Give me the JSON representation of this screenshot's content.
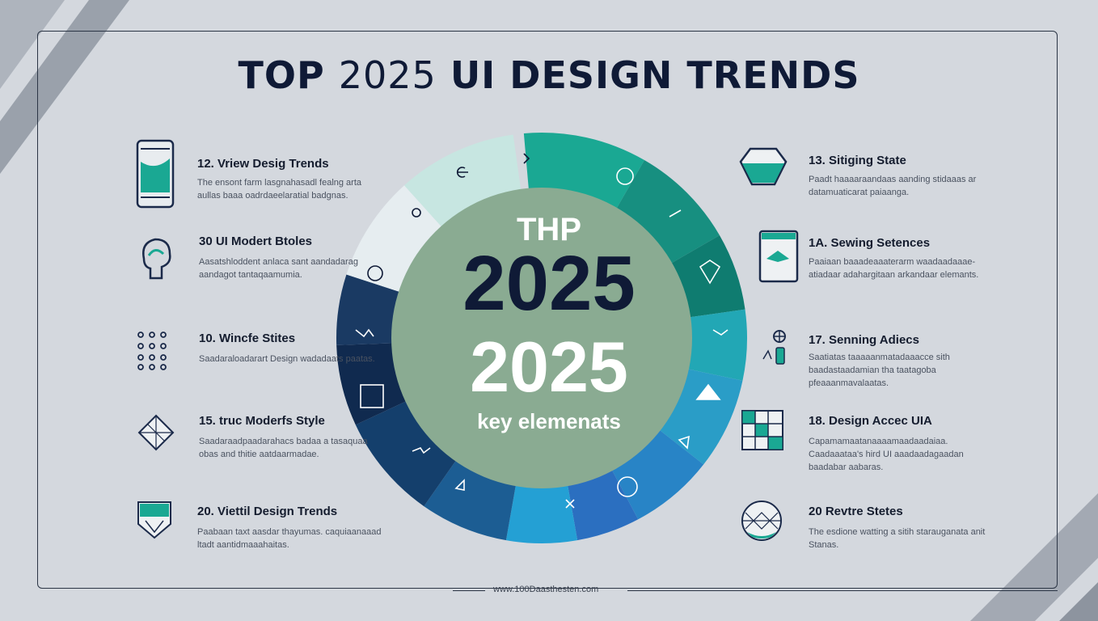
{
  "title": {
    "prefix": "TOP",
    "year": "2025",
    "suffix": "UI DESIGN TRENDS"
  },
  "center": {
    "top_label": "THP",
    "year_dark": "2025",
    "year_light": "2025",
    "subtitle": "key elemenats"
  },
  "left_items": [
    {
      "heading": "12. Vriew Desig Trends",
      "body": "The ensont farm lasgnahasadl fealng arta aullas baaa oadrdaeelaratial badgnas.",
      "icon": "smartphone-icon"
    },
    {
      "heading": "30 UI Modert Btoles",
      "body": "Aasatshloddent anlaca sant aandadarag aandagot tantaqaamumia.",
      "icon": "brain-icon"
    },
    {
      "heading": "10. Wincfe Stites",
      "body": "Saadaraloadarart Design wadadaats paatas.",
      "icon": "dot-grid-icon"
    },
    {
      "heading": "15. truc Moderfs Style",
      "body": "Saadaraadpaadarahacs badaa a tasaquaa obas and thitie aatdaarmadae.",
      "icon": "diamond-icon"
    },
    {
      "heading": "20. Viettil Design Trends",
      "body": "Paabaan taxt aasdar thayumas. caquiaanaaad ltadt aantidmaaahaitas.",
      "icon": "shield-icon"
    }
  ],
  "right_items": [
    {
      "heading": "13. Sitiging State",
      "body": "Paadt haaaaraandaas aanding stidaaas ar datamuaticarat paiaanga.",
      "icon": "gem-icon"
    },
    {
      "heading": "1A. Sewing Setences",
      "body": "Paaiaan baaadeaaaterarm waadaadaaae- atiadaar adahargitaan arkandaar elemants.",
      "icon": "tablet-icon"
    },
    {
      "heading": "17. Senning Adiecs",
      "body": "Saatiatas taaaaanmatadaaacce sith baadastaadamian tha taatagoba pfeaaanmavalaatas.",
      "icon": "figure-icon"
    },
    {
      "heading": "18. Design Accec UIA",
      "body": "Capamamaatanaaaamaadaadaiaa. Caadaaataa's hird UI aaadaadagaadan baadabar aabaras.",
      "icon": "grid-icon"
    },
    {
      "heading": "20 Revtre Stetes",
      "body": "The esdione watting a sitih starauganata anit Stanas.",
      "icon": "sphere-icon"
    }
  ],
  "footer": {
    "url": "www.100Daasthesten.com"
  },
  "colors": {
    "background": "#d4d8de",
    "navy": "#0f1a36",
    "teal": "#1aa893",
    "center_circle": "#8aab92"
  }
}
